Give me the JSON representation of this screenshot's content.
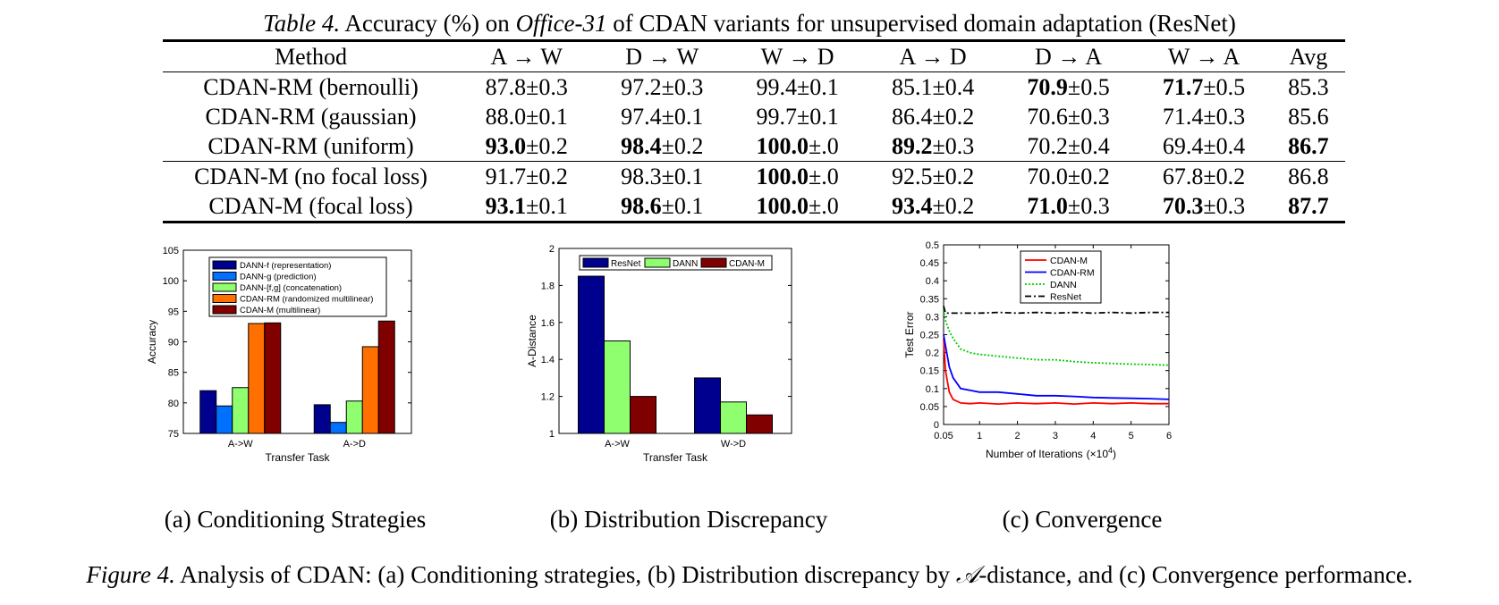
{
  "table_caption": {
    "label": "Table 4.",
    "text_before": " Accuracy (%) on ",
    "dataset": "Office-31",
    "text_after": " of CDAN variants for unsupervised domain adaptation (ResNet)"
  },
  "table": {
    "columns": [
      "Method",
      "A → W",
      "D → W",
      "W → D",
      "A → D",
      "D → A",
      "W → A",
      "Avg"
    ],
    "rows": [
      {
        "method": "CDAN-RM (bernoulli)",
        "cells": [
          [
            "87.8",
            "±0.3",
            false
          ],
          [
            "97.2",
            "±0.3",
            false
          ],
          [
            "99.4",
            "±0.1",
            false
          ],
          [
            "85.1",
            "±0.4",
            false
          ],
          [
            "70.9",
            "±0.5",
            true
          ],
          [
            "71.7",
            "±0.5",
            true
          ],
          [
            "85.3",
            "",
            false
          ]
        ]
      },
      {
        "method": "CDAN-RM (gaussian)",
        "cells": [
          [
            "88.0",
            "±0.1",
            false
          ],
          [
            "97.4",
            "±0.1",
            false
          ],
          [
            "99.7",
            "±0.1",
            false
          ],
          [
            "86.4",
            "±0.2",
            false
          ],
          [
            "70.6",
            "±0.3",
            false
          ],
          [
            "71.4",
            "±0.3",
            false
          ],
          [
            "85.6",
            "",
            false
          ]
        ]
      },
      {
        "method": "CDAN-RM (uniform)",
        "cells": [
          [
            "93.0",
            "±0.2",
            true
          ],
          [
            "98.4",
            "±0.2",
            true
          ],
          [
            "100.0",
            "±.0",
            true
          ],
          [
            "89.2",
            "±0.3",
            true
          ],
          [
            "70.2",
            "±0.4",
            false
          ],
          [
            "69.4",
            "±0.4",
            false
          ],
          [
            "86.7",
            "",
            true
          ]
        ]
      },
      {
        "method": "CDAN-M (no focal loss)",
        "cells": [
          [
            "91.7",
            "±0.2",
            false
          ],
          [
            "98.3",
            "±0.1",
            false
          ],
          [
            "100.0",
            "±.0",
            true
          ],
          [
            "92.5",
            "±0.2",
            false
          ],
          [
            "70.0",
            "±0.2",
            false
          ],
          [
            "67.8",
            "±0.2",
            false
          ],
          [
            "86.8",
            "",
            false
          ]
        ]
      },
      {
        "method": "CDAN-M (focal loss)",
        "cells": [
          [
            "93.1",
            "±0.1",
            true
          ],
          [
            "98.6",
            "±0.1",
            true
          ],
          [
            "100.0",
            "±.0",
            true
          ],
          [
            "93.4",
            "±0.2",
            true
          ],
          [
            "71.0",
            "±0.3",
            true
          ],
          [
            "70.3",
            "±0.3",
            true
          ],
          [
            "87.7",
            "",
            true
          ]
        ]
      }
    ]
  },
  "chart_data": [
    {
      "type": "bar",
      "categories": [
        "A->W",
        "A->D"
      ],
      "xlabel": "Transfer Task",
      "ylabel": "Accuracy",
      "ylim": [
        75,
        105
      ],
      "yticks": [
        75,
        80,
        85,
        90,
        95,
        100,
        105
      ],
      "legend_position": "top",
      "series": [
        {
          "name": "DANN-f (representation)",
          "color": "#00008f",
          "values": [
            82.0,
            79.7
          ]
        },
        {
          "name": "DANN-g (prediction)",
          "color": "#0070ff",
          "values": [
            79.5,
            76.8
          ]
        },
        {
          "name": "DANN-[f,g] (concatenation)",
          "color": "#8fff70",
          "values": [
            82.5,
            80.3
          ]
        },
        {
          "name": "CDAN-RM (randomized multilinear)",
          "color": "#ff7000",
          "values": [
            93.0,
            89.2
          ]
        },
        {
          "name": "CDAN-M (multilinear)",
          "color": "#800000",
          "values": [
            93.1,
            93.4
          ]
        }
      ]
    },
    {
      "type": "bar",
      "categories": [
        "A->W",
        "W->D"
      ],
      "xlabel": "Transfer Task",
      "ylabel": "A-Distance",
      "ylim": [
        1,
        2
      ],
      "yticks": [
        1,
        1.2,
        1.4,
        1.6,
        1.8,
        2
      ],
      "legend_position": "top",
      "series": [
        {
          "name": "ResNet",
          "color": "#00008f",
          "values": [
            1.85,
            1.3
          ]
        },
        {
          "name": "DANN",
          "color": "#8fff70",
          "values": [
            1.5,
            1.17
          ]
        },
        {
          "name": "CDAN-M",
          "color": "#800000",
          "values": [
            1.2,
            1.1
          ]
        }
      ]
    },
    {
      "type": "line",
      "xlabel": "Number of Iterations",
      "xlabel_unit": "(×10",
      "xlabel_exp": "4",
      "ylabel": "Test Error",
      "xlim": [
        0.05,
        6
      ],
      "ylim": [
        0,
        0.5
      ],
      "xticks": [
        "0.05",
        "1",
        "2",
        "3",
        "4",
        "5",
        "6"
      ],
      "yticks": [
        "0",
        "0.05",
        "0.1",
        "0.15",
        "0.2",
        "0.25",
        "0.3",
        "0.35",
        "0.4",
        "0.45",
        "0.5"
      ],
      "legend_position": "top",
      "series": [
        {
          "name": "CDAN-M",
          "color": "#ff0000",
          "style": "solid",
          "x": [
            0.05,
            0.1,
            0.2,
            0.3,
            0.5,
            0.75,
            1,
            1.5,
            2,
            2.5,
            3,
            3.5,
            4,
            4.5,
            5,
            5.5,
            6
          ],
          "y": [
            0.24,
            0.15,
            0.09,
            0.07,
            0.06,
            0.058,
            0.06,
            0.057,
            0.06,
            0.058,
            0.06,
            0.057,
            0.06,
            0.058,
            0.06,
            0.058,
            0.058
          ]
        },
        {
          "name": "CDAN-RM",
          "color": "#0000ff",
          "style": "solid",
          "x": [
            0.05,
            0.1,
            0.2,
            0.3,
            0.5,
            0.75,
            1,
            1.5,
            2,
            2.5,
            3,
            3.5,
            4,
            4.5,
            5,
            5.5,
            6
          ],
          "y": [
            0.25,
            0.22,
            0.16,
            0.13,
            0.1,
            0.095,
            0.09,
            0.09,
            0.085,
            0.08,
            0.08,
            0.078,
            0.075,
            0.074,
            0.073,
            0.072,
            0.07
          ]
        },
        {
          "name": "DANN",
          "color": "#00cc00",
          "style": "dotted",
          "x": [
            0.05,
            0.1,
            0.2,
            0.3,
            0.5,
            0.75,
            1,
            1.5,
            2,
            2.5,
            3,
            3.5,
            4,
            4.5,
            5,
            5.5,
            6
          ],
          "y": [
            0.32,
            0.29,
            0.26,
            0.24,
            0.21,
            0.2,
            0.195,
            0.19,
            0.185,
            0.18,
            0.18,
            0.175,
            0.172,
            0.17,
            0.168,
            0.167,
            0.165
          ]
        },
        {
          "name": "ResNet",
          "color": "#000000",
          "style": "dashdot",
          "x": [
            0.05,
            0.1,
            0.2,
            0.5,
            1,
            1.5,
            2,
            2.5,
            3,
            3.5,
            4,
            4.5,
            5,
            5.5,
            6
          ],
          "y": [
            0.33,
            0.31,
            0.31,
            0.31,
            0.31,
            0.312,
            0.31,
            0.312,
            0.31,
            0.312,
            0.31,
            0.312,
            0.31,
            0.312,
            0.312
          ]
        }
      ]
    }
  ],
  "subcaptions": {
    "a_label": "(a)",
    "a_text": "Conditioning Strategies",
    "b_label": "(b)",
    "b_text": "Distribution Discrepancy",
    "c_label": "(c)",
    "c_text": "Convergence"
  },
  "figure_caption": {
    "label": "Figure 4.",
    "text_before": " Analysis of CDAN: (a) Conditioning strategies, (b) Distribution discrepancy by ",
    "symbol": "𝒜",
    "text_after": "-distance, and (c) Convergence performance."
  }
}
